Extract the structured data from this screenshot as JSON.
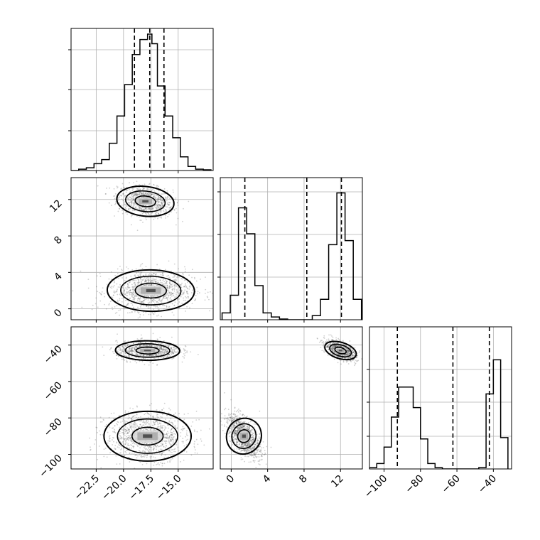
{
  "chart_data": {
    "type": "corner",
    "title": "",
    "parameters": [
      "",
      "",
      ""
    ],
    "ranges": [
      [
        -24.8,
        -11.8
      ],
      [
        -1.2,
        14.4
      ],
      [
        -108,
        -30
      ]
    ],
    "quantiles": [
      [
        -19.0,
        -17.6,
        -16.3
      ],
      [
        1.5,
        8.3,
        12.1
      ],
      [
        -92.7,
        -62.2,
        -42.2
      ]
    ],
    "ticks": {
      "x0": [
        -22.5,
        -20.0,
        -17.5,
        -15.0
      ],
      "x0_labels": [
        "−22.5",
        "−20.0",
        "−17.5",
        "−15.0"
      ],
      "x1": [
        0,
        4,
        8,
        12
      ],
      "x1_labels": [
        "0",
        "4",
        "8",
        "12"
      ],
      "x2": [
        -100,
        -80,
        -60,
        -40
      ],
      "x2_labels": [
        "−100",
        "−80",
        "−60",
        "−40"
      ],
      "y1": [
        0,
        4,
        8,
        12
      ],
      "y1_labels": [
        "0",
        "4",
        "8",
        "12"
      ],
      "y2": [
        -100,
        -80,
        -60,
        -40
      ],
      "y2_labels": [
        "−100",
        "−80",
        "−60",
        "−40"
      ]
    },
    "histograms": [
      {
        "param": 0,
        "bin_edges": [
          -24.8,
          -24.1,
          -23.4,
          -22.7,
          -22.0,
          -21.3,
          -20.6,
          -19.9,
          -19.2,
          -18.5,
          -17.8,
          -17.4,
          -16.9,
          -16.2,
          -15.5,
          -14.8,
          -14.1,
          -13.4,
          -12.7,
          -12.0
        ],
        "counts": [
          0,
          0.01,
          0.02,
          0.05,
          0.08,
          0.2,
          0.4,
          0.63,
          0.85,
          0.96,
          1.0,
          0.93,
          0.62,
          0.4,
          0.24,
          0.1,
          0.03,
          0.01,
          0.005
        ],
        "y_gridlines": [
          0.28,
          0.57,
          0.85
        ]
      },
      {
        "param": 1,
        "bin_edges": [
          -1.0,
          -0.1,
          0.8,
          1.7,
          2.6,
          3.5,
          4.4,
          5.3,
          6.2,
          7.1,
          8.0,
          8.9,
          9.8,
          10.7,
          11.6,
          12.5,
          13.4,
          14.3
        ],
        "counts": [
          0.05,
          0.18,
          0.82,
          0.63,
          0.25,
          0.05,
          0.02,
          0.005,
          0,
          0,
          0,
          0.03,
          0.15,
          0.55,
          0.93,
          0.58,
          0.15
        ],
        "y_gridlines": [
          0.3,
          0.6,
          0.9
        ]
      },
      {
        "param": 2,
        "bin_edges": [
          -108,
          -104,
          -100,
          -96,
          -92,
          -88,
          -84,
          -80,
          -76,
          -72,
          -68,
          -64,
          -60,
          -56,
          -52,
          -48,
          -44,
          -40,
          -36,
          -32
        ],
        "counts": [
          0.01,
          0.04,
          0.16,
          0.38,
          0.6,
          0.6,
          0.45,
          0.22,
          0.04,
          0.01,
          0,
          0,
          0,
          0,
          0,
          0.01,
          0.55,
          0.8,
          0.23
        ],
        "y_gridlines": [
          0.23,
          0.47,
          0.7
        ]
      }
    ],
    "scatter_panels": [
      {
        "x_param": 0,
        "y_param": 1,
        "clusters": [
          {
            "cx": -18.0,
            "cy": 11.8,
            "sx": 1.25,
            "sy": 0.85,
            "rho": -0.25,
            "n": 900
          },
          {
            "cx": -17.5,
            "cy": 2.0,
            "sx": 1.9,
            "sy": 1.1,
            "rho": 0.05,
            "n": 1100
          }
        ]
      },
      {
        "x_param": 0,
        "y_param": 2,
        "clusters": [
          {
            "cx": -17.8,
            "cy": -43.0,
            "sx": 1.4,
            "sy": 2.6,
            "rho": 0.05,
            "n": 900
          },
          {
            "cx": -17.8,
            "cy": -90.0,
            "sx": 1.9,
            "sy": 6.5,
            "rho": 0.0,
            "n": 1100
          }
        ]
      },
      {
        "x_param": 1,
        "y_param": 2,
        "clusters": [
          {
            "cx": 12.0,
            "cy": -43.0,
            "sx": 0.85,
            "sy": 2.7,
            "rho": -0.6,
            "n": 900
          },
          {
            "cx": 1.4,
            "cy": -90.0,
            "sx": 0.9,
            "sy": 6.0,
            "rho": -0.6,
            "n": 1100
          }
        ]
      }
    ],
    "grid": true,
    "colors": {
      "marks": "#000000",
      "points": "#555555",
      "grid": "#b0b0b0"
    }
  }
}
